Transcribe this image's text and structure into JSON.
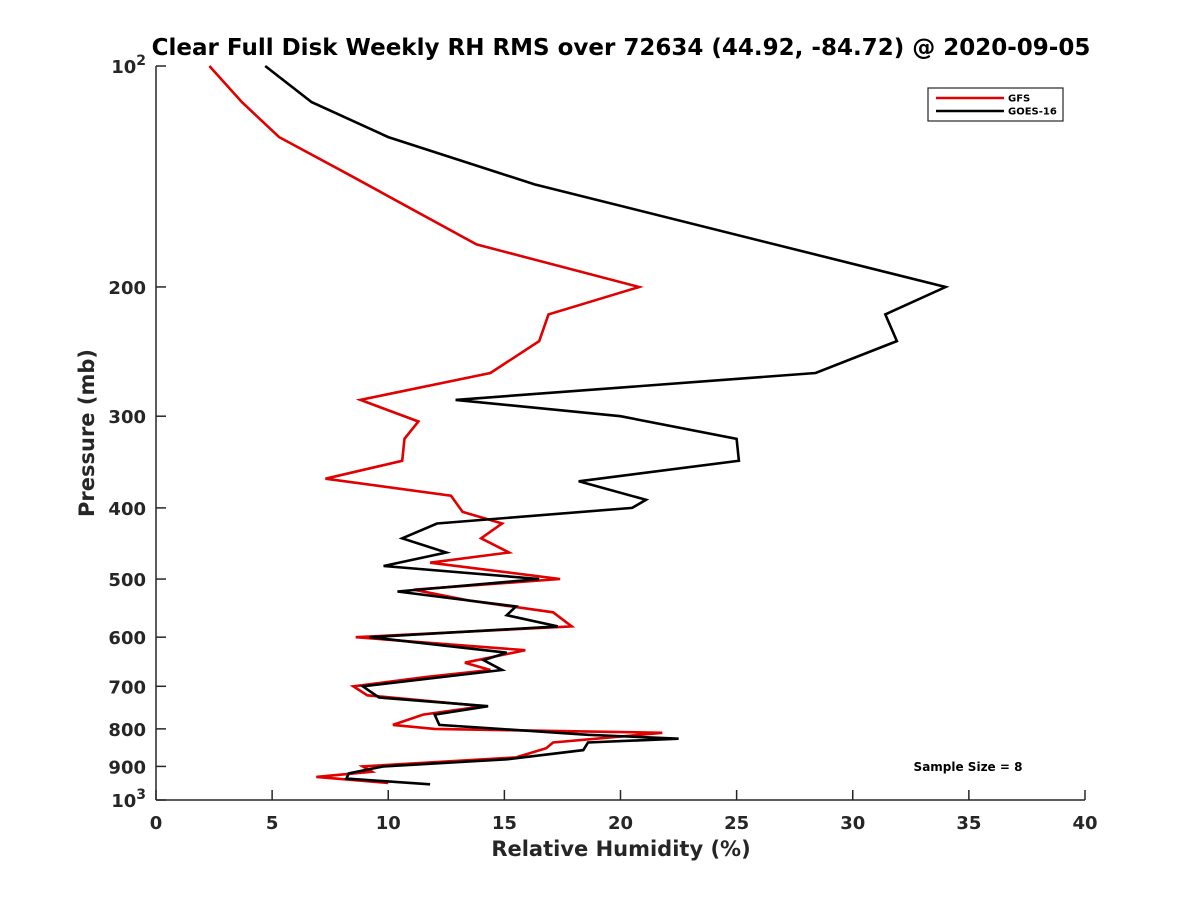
{
  "chart_data": {
    "type": "line",
    "title": "Clear Full Disk Weekly RH RMS over 72634 (44.92, -84.72) @ 2020-09-05",
    "xlabel": "Relative Humidity (%)",
    "ylabel": "Pressure (mb)",
    "xlim": [
      0,
      40
    ],
    "ylim": [
      100,
      1000
    ],
    "y_scale": "log",
    "y_reversed": true,
    "x_ticks": [
      0,
      5,
      10,
      15,
      20,
      25,
      30,
      35,
      40
    ],
    "x_tick_labels": [
      "0",
      "5",
      "10",
      "15",
      "20",
      "25",
      "30",
      "35",
      "40"
    ],
    "y_ticks": [
      100,
      200,
      300,
      400,
      500,
      600,
      700,
      800,
      900,
      1000
    ],
    "y_tick_labels": [
      {
        "base": "10",
        "exp": "2"
      },
      {
        "text": "200"
      },
      {
        "text": "300"
      },
      {
        "text": "400"
      },
      {
        "text": "500"
      },
      {
        "text": "600"
      },
      {
        "text": "700"
      },
      {
        "text": "800"
      },
      {
        "text": "900"
      },
      {
        "base": "10",
        "exp": "3"
      }
    ],
    "legend_position": "top-right",
    "annotation": "Sample Size = 8",
    "series": [
      {
        "name": "GFS",
        "color": "#e00000",
        "points": [
          [
            2.3,
            100
          ],
          [
            3.7,
            112
          ],
          [
            5.3,
            125
          ],
          [
            8.2,
            140
          ],
          [
            13.8,
            175
          ],
          [
            20.8,
            200
          ],
          [
            16.9,
            218
          ],
          [
            16.5,
            237
          ],
          [
            14.4,
            262
          ],
          [
            8.8,
            285
          ],
          [
            11.3,
            305
          ],
          [
            10.7,
            322
          ],
          [
            10.6,
            345
          ],
          [
            7.3,
            365
          ],
          [
            12.7,
            385
          ],
          [
            13.2,
            405
          ],
          [
            14.9,
            420
          ],
          [
            14.0,
            440
          ],
          [
            15.2,
            460
          ],
          [
            11.8,
            475
          ],
          [
            17.4,
            500
          ],
          [
            11.1,
            517
          ],
          [
            13.5,
            535
          ],
          [
            17.1,
            555
          ],
          [
            17.9,
            580
          ],
          [
            8.6,
            600
          ],
          [
            15.9,
            625
          ],
          [
            13.3,
            650
          ],
          [
            14.4,
            665
          ],
          [
            11.6,
            680
          ],
          [
            8.5,
            700
          ],
          [
            9.1,
            720
          ],
          [
            14.1,
            745
          ],
          [
            11.5,
            765
          ],
          [
            10.2,
            790
          ],
          [
            12.0,
            800
          ],
          [
            21.8,
            810
          ],
          [
            17.1,
            835
          ],
          [
            16.8,
            850
          ],
          [
            15.5,
            875
          ],
          [
            8.9,
            900
          ],
          [
            9.3,
            915
          ],
          [
            6.9,
            930
          ],
          [
            10.0,
            948
          ]
        ]
      },
      {
        "name": "GOES-16",
        "color": "#000000",
        "points": [
          [
            4.7,
            100
          ],
          [
            6.7,
            112
          ],
          [
            10.0,
            125
          ],
          [
            16.3,
            145
          ],
          [
            34.0,
            200
          ],
          [
            31.4,
            218
          ],
          [
            31.9,
            237
          ],
          [
            28.4,
            262
          ],
          [
            12.9,
            285
          ],
          [
            20.0,
            300
          ],
          [
            25.0,
            322
          ],
          [
            25.1,
            345
          ],
          [
            18.2,
            368
          ],
          [
            21.1,
            390
          ],
          [
            20.5,
            400
          ],
          [
            12.1,
            420
          ],
          [
            10.6,
            440
          ],
          [
            12.5,
            460
          ],
          [
            9.8,
            480
          ],
          [
            16.5,
            500
          ],
          [
            10.4,
            520
          ],
          [
            15.5,
            545
          ],
          [
            15.1,
            560
          ],
          [
            17.3,
            580
          ],
          [
            9.2,
            600
          ],
          [
            15.1,
            630
          ],
          [
            14.1,
            645
          ],
          [
            14.9,
            665
          ],
          [
            8.9,
            700
          ],
          [
            9.6,
            725
          ],
          [
            14.3,
            745
          ],
          [
            12.0,
            765
          ],
          [
            12.2,
            790
          ],
          [
            18.6,
            815
          ],
          [
            22.5,
            825
          ],
          [
            18.6,
            835
          ],
          [
            18.4,
            855
          ],
          [
            15.1,
            880
          ],
          [
            9.8,
            900
          ],
          [
            8.3,
            920
          ],
          [
            8.2,
            935
          ],
          [
            11.8,
            952
          ]
        ]
      }
    ]
  }
}
